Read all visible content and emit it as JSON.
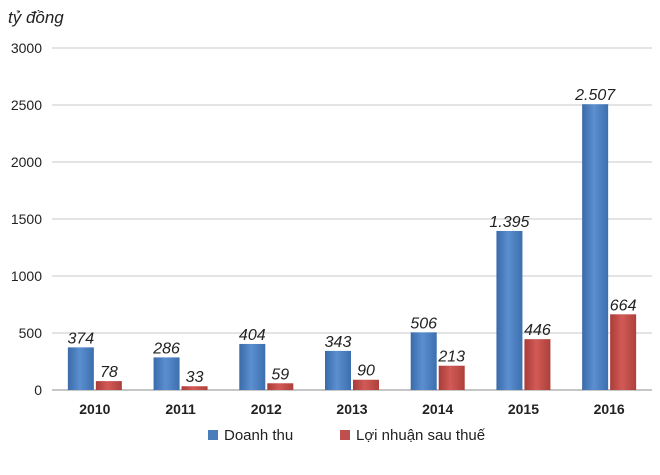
{
  "chart_data": {
    "type": "bar",
    "title": "",
    "ylabel": "tỷ đồng",
    "xlabel": "",
    "ylim": [
      0,
      3000
    ],
    "yticks": [
      "0",
      "500",
      "1000",
      "1500",
      "2000",
      "2500",
      "3000"
    ],
    "ytick_values": [
      0,
      500,
      1000,
      1500,
      2000,
      2500,
      3000
    ],
    "grid": true,
    "legend": "bottom",
    "categories": [
      "2010",
      "2011",
      "2012",
      "2013",
      "2014",
      "2015",
      "2016"
    ],
    "series": [
      {
        "name": "Doanh thu",
        "color": "#4a7ebb",
        "values": [
          374,
          286,
          404,
          343,
          506,
          1395,
          2507
        ],
        "labels": [
          "374",
          "286",
          "404",
          "343",
          "506",
          "1.395",
          "2.507"
        ]
      },
      {
        "name": "Lợi nhuận sau thuế",
        "color": "#c0504d",
        "values": [
          78,
          33,
          59,
          90,
          213,
          446,
          664
        ],
        "labels": [
          "78",
          "33",
          "59",
          "90",
          "213",
          "446",
          "664"
        ]
      }
    ]
  }
}
